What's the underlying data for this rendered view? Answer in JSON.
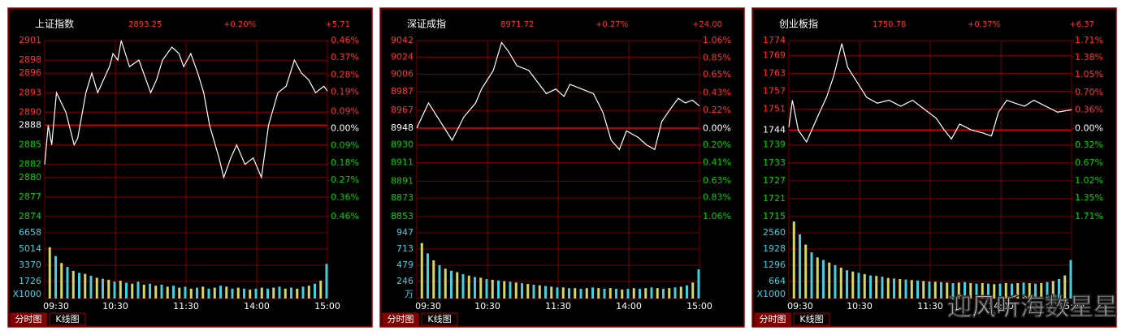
{
  "chart_data": [
    {
      "type": "line",
      "title": "上证指数",
      "price": "2893.25",
      "change_pct": "+0.20%",
      "change": "+5.71",
      "color": "#ffffff",
      "x": [
        0,
        3,
        6,
        10,
        18,
        25,
        28,
        35,
        40,
        45,
        55,
        58,
        62,
        65,
        72,
        80,
        90,
        95,
        100,
        108,
        114,
        118,
        124,
        130,
        135,
        140,
        148,
        152,
        158,
        163,
        170,
        177,
        184,
        190,
        198,
        205,
        212,
        218,
        224,
        230,
        237,
        240
      ],
      "values": [
        2882,
        2888,
        2885,
        2893,
        2890,
        2885,
        2886,
        2893,
        2896,
        2893,
        2897,
        2899,
        2898,
        2901,
        2897,
        2898,
        2893,
        2895,
        2898,
        2900,
        2899,
        2897,
        2899,
        2896,
        2893,
        2888,
        2883,
        2880,
        2883,
        2885,
        2882,
        2883,
        2880,
        2888,
        2893,
        2894,
        2898,
        2896,
        2895,
        2893,
        2894,
        2893.25
      ],
      "xlim": [
        0,
        240
      ],
      "xticks": [
        {
          "value": 0,
          "label": "09:30"
        },
        {
          "value": 60,
          "label": "10:30"
        },
        {
          "value": 120,
          "label": "11:30"
        },
        {
          "value": 180,
          "label": "14:00"
        },
        {
          "value": 240,
          "label": "15:00"
        }
      ],
      "ylim": [
        2874,
        2901
      ],
      "yticks": [
        2901,
        2898,
        2896,
        2893,
        2890,
        2888,
        2885,
        2882,
        2880,
        2877,
        2874
      ],
      "y2lim": [
        -0.46,
        0.46
      ],
      "y2ticks": [
        {
          "value": 0.46,
          "label": "0.46%"
        },
        {
          "value": 0.37,
          "label": "0.37%"
        },
        {
          "value": 0.28,
          "label": "0.28%"
        },
        {
          "value": 0.19,
          "label": "0.19%"
        },
        {
          "value": 0.09,
          "label": "0.09%"
        },
        {
          "value": 0,
          "label": "0.00%"
        },
        {
          "value": -0.09,
          "label": "0.09%"
        },
        {
          "value": -0.18,
          "label": "0.18%"
        },
        {
          "value": -0.27,
          "label": "0.27%"
        },
        {
          "value": -0.36,
          "label": "0.36%"
        },
        {
          "value": -0.46,
          "label": "0.46%"
        }
      ],
      "volume": {
        "unit": "X1000",
        "color": "#d8d860",
        "ylim": [
          0,
          8302
        ],
        "yticks": [
          6658,
          5014,
          3370,
          1726
        ],
        "x": [
          5,
          10,
          15,
          20,
          25,
          30,
          35,
          40,
          45,
          50,
          55,
          60,
          65,
          70,
          75,
          80,
          85,
          90,
          95,
          100,
          105,
          110,
          115,
          120,
          125,
          130,
          135,
          140,
          145,
          150,
          155,
          160,
          165,
          170,
          175,
          180,
          185,
          190,
          195,
          200,
          205,
          210,
          215,
          220,
          225,
          230,
          235,
          240
        ],
        "values": [
          5200,
          4300,
          3600,
          3200,
          2800,
          2600,
          2500,
          2300,
          2100,
          2000,
          1900,
          1700,
          1800,
          1600,
          1500,
          1700,
          1400,
          1500,
          1300,
          1400,
          1200,
          1300,
          1100,
          1200,
          1000,
          1100,
          1200,
          1000,
          1100,
          1300,
          1200,
          1000,
          1100,
          1000,
          900,
          1000,
          1100,
          1000,
          1100,
          1200,
          1000,
          1100,
          1000,
          1200,
          1300,
          1500,
          1800,
          3500
        ]
      }
    },
    {
      "type": "line",
      "title": "深证成指",
      "price": "8971.72",
      "change_pct": "+0.27%",
      "change": "+24.00",
      "color": "#ffffff",
      "x": [
        0,
        10,
        20,
        25,
        30,
        40,
        50,
        55,
        65,
        72,
        78,
        85,
        95,
        110,
        118,
        125,
        130,
        140,
        150,
        158,
        165,
        172,
        178,
        188,
        195,
        202,
        208,
        215,
        222,
        228,
        234,
        240
      ],
      "values": [
        8948,
        8975,
        8955,
        8945,
        8935,
        8960,
        8975,
        8990,
        9010,
        9040,
        9030,
        9015,
        9010,
        8985,
        8990,
        8982,
        8995,
        8990,
        8985,
        8965,
        8935,
        8925,
        8945,
        8938,
        8930,
        8925,
        8955,
        8968,
        8980,
        8975,
        8978,
        8971.72
      ],
      "xlim": [
        0,
        240
      ],
      "xticks": [
        {
          "value": 0,
          "label": "09:30"
        },
        {
          "value": 60,
          "label": "10:30"
        },
        {
          "value": 120,
          "label": "11:30"
        },
        {
          "value": 180,
          "label": "14:00"
        },
        {
          "value": 240,
          "label": "15:00"
        }
      ],
      "ylim": [
        8853,
        9042
      ],
      "yticks": [
        9042,
        9024,
        9006,
        8987,
        8967,
        8948,
        8930,
        8911,
        8891,
        8873,
        8853
      ],
      "y2lim": [
        -1.06,
        1.06
      ],
      "y2ticks": [
        {
          "value": 1.06,
          "label": "1.06%"
        },
        {
          "value": 0.85,
          "label": "0.85%"
        },
        {
          "value": 0.65,
          "label": "0.65%"
        },
        {
          "value": 0.43,
          "label": "0.43%"
        },
        {
          "value": 0.22,
          "label": "0.22%"
        },
        {
          "value": 0,
          "label": "0.00%"
        },
        {
          "value": -0.2,
          "label": "0.20%"
        },
        {
          "value": -0.41,
          "label": "0.41%"
        },
        {
          "value": -0.63,
          "label": "0.63%"
        },
        {
          "value": -0.83,
          "label": "0.83%"
        },
        {
          "value": -1.06,
          "label": "1.06%"
        }
      ],
      "volume": {
        "unit": "万",
        "color": "#d8d860",
        "ylim": [
          0,
          1181
        ],
        "yticks": [
          947,
          713,
          479,
          246
        ],
        "x": [
          5,
          10,
          15,
          20,
          25,
          30,
          35,
          40,
          45,
          50,
          55,
          60,
          65,
          70,
          75,
          80,
          85,
          90,
          95,
          100,
          105,
          110,
          115,
          120,
          125,
          130,
          135,
          140,
          145,
          150,
          155,
          160,
          165,
          170,
          175,
          180,
          185,
          190,
          195,
          200,
          205,
          210,
          215,
          220,
          225,
          230,
          235,
          240
        ],
        "values": [
          800,
          650,
          550,
          480,
          430,
          400,
          380,
          350,
          330,
          310,
          300,
          280,
          270,
          260,
          250,
          240,
          230,
          220,
          210,
          200,
          190,
          180,
          170,
          160,
          160,
          150,
          150,
          140,
          150,
          160,
          150,
          140,
          150,
          140,
          130,
          140,
          150,
          140,
          150,
          160,
          150,
          140,
          150,
          160,
          170,
          190,
          230,
          420
        ]
      }
    },
    {
      "type": "line",
      "title": "创业板指",
      "price": "1750.78",
      "change_pct": "+0.37%",
      "change": "+6.37",
      "color": "#ffffff",
      "x": [
        0,
        3,
        8,
        15,
        25,
        32,
        38,
        45,
        50,
        58,
        66,
        75,
        85,
        95,
        105,
        115,
        125,
        132,
        138,
        145,
        155,
        165,
        172,
        178,
        185,
        192,
        200,
        208,
        218,
        228,
        240
      ],
      "values": [
        1745,
        1754,
        1744,
        1740,
        1749,
        1755,
        1762,
        1773,
        1765,
        1760,
        1755,
        1753,
        1754,
        1752,
        1754,
        1751,
        1748,
        1744,
        1741,
        1746,
        1744,
        1743,
        1742,
        1750,
        1754,
        1753,
        1752,
        1754,
        1752,
        1750,
        1750.78
      ],
      "xlim": [
        0,
        240
      ],
      "xticks": [
        {
          "value": 0,
          "label": "09:30"
        },
        {
          "value": 60,
          "label": "10:30"
        },
        {
          "value": 120,
          "label": "11:30"
        },
        {
          "value": 180,
          "label": "14:00"
        },
        {
          "value": 240,
          "label": "15:00"
        }
      ],
      "ylim": [
        1715,
        1774
      ],
      "yticks": [
        1774,
        1769,
        1763,
        1757,
        1751,
        1744,
        1739,
        1733,
        1727,
        1721,
        1715
      ],
      "y2lim": [
        -1.71,
        1.71
      ],
      "y2ticks": [
        {
          "value": 1.71,
          "label": "1.71%"
        },
        {
          "value": 1.38,
          "label": "1.38%"
        },
        {
          "value": 1.05,
          "label": "1.05%"
        },
        {
          "value": 0.7,
          "label": "0.70%"
        },
        {
          "value": 0.36,
          "label": "0.36%"
        },
        {
          "value": 0,
          "label": "0.00%"
        },
        {
          "value": -0.32,
          "label": "0.32%"
        },
        {
          "value": -0.67,
          "label": "0.67%"
        },
        {
          "value": -1.02,
          "label": "1.02%"
        },
        {
          "value": -1.35,
          "label": "1.35%"
        },
        {
          "value": -1.71,
          "label": "1.71%"
        }
      ],
      "volume": {
        "unit": "X1000",
        "color": "#d8d860",
        "ylim": [
          0,
          3192
        ],
        "yticks": [
          2560,
          1928,
          1296,
          664
        ],
        "x": [
          5,
          10,
          15,
          20,
          25,
          30,
          35,
          40,
          45,
          50,
          55,
          60,
          65,
          70,
          75,
          80,
          85,
          90,
          95,
          100,
          105,
          110,
          115,
          120,
          125,
          130,
          135,
          140,
          145,
          150,
          155,
          160,
          165,
          170,
          175,
          180,
          185,
          190,
          195,
          200,
          205,
          210,
          215,
          220,
          225,
          230,
          235,
          240
        ],
        "values": [
          3000,
          2500,
          2100,
          1800,
          1600,
          1500,
          1400,
          1300,
          1200,
          1100,
          1050,
          1000,
          950,
          900,
          880,
          850,
          800,
          780,
          760,
          740,
          720,
          700,
          680,
          660,
          650,
          640,
          620,
          600,
          620,
          640,
          600,
          580,
          600,
          580,
          560,
          580,
          600,
          580,
          600,
          620,
          600,
          580,
          600,
          640,
          680,
          760,
          900,
          1500
        ]
      }
    }
  ],
  "tabs": [
    "分时图",
    "K线图"
  ],
  "watermark": "迎风听海数星星"
}
